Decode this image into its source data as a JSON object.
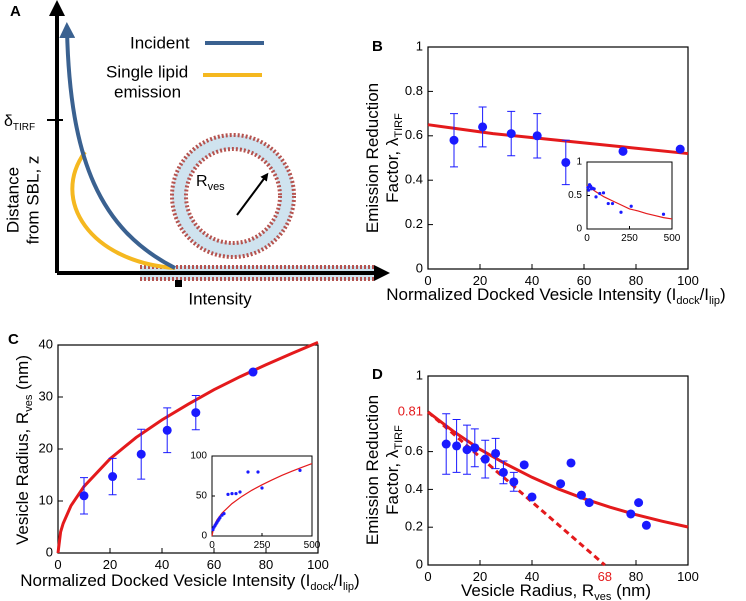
{
  "diagram": {
    "panel": "A",
    "incident": "Incident",
    "emission": [
      "Single lipid",
      "emission"
    ],
    "delta": {
      "text": "δ",
      "sub": "TIRF"
    },
    "ylabel": [
      "Distance",
      "from SBL, z"
    ],
    "xlabel": "Intensity",
    "radius": {
      "text": "R",
      "sub": "ves"
    }
  },
  "chart_data": [
    {
      "panel": "B",
      "type": "scatter",
      "xlim": [
        0,
        100
      ],
      "ylim": [
        0,
        1
      ],
      "xticks": [
        0,
        20,
        40,
        60,
        80,
        100
      ],
      "yticks": [
        0,
        0.2,
        0.4,
        0.6,
        0.8,
        1
      ],
      "xlabel": [
        {
          "text": "Normalized Docked Vesicle Intensity (I"
        },
        {
          "sub": "dock"
        },
        {
          "text": "/I"
        },
        {
          "sub": "lip"
        },
        {
          "text": ")"
        }
      ],
      "ylabel": [
        [
          {
            "text": "Emission Reduction"
          }
        ],
        [
          {
            "text": "Factor, λ"
          },
          {
            "sub": "TIRF"
          }
        ]
      ],
      "series": [
        {
          "type": "line",
          "color": "#e41a1c",
          "x": [
            0,
            25,
            50,
            75,
            100
          ],
          "values": [
            0.65,
            0.61,
            0.58,
            0.55,
            0.52
          ]
        },
        {
          "type": "scatter",
          "color": "#1a1aff",
          "x": [
            10,
            21,
            32,
            42,
            53,
            75,
            97
          ],
          "values": [
            0.58,
            0.64,
            0.61,
            0.6,
            0.48,
            0.53,
            0.54
          ],
          "errors": [
            0.12,
            0.09,
            0.1,
            0.1,
            0.1,
            null,
            null
          ]
        }
      ],
      "inset": {
        "xlim": [
          0,
          500
        ],
        "ylim": [
          0,
          1
        ],
        "xticks": [
          0,
          250,
          500
        ],
        "yticks": [
          0,
          0.5,
          1
        ],
        "series": [
          {
            "type": "line",
            "color": "#e41a1c",
            "x": [
              0,
              50,
              100,
              150,
              200,
              250,
              300,
              350,
              400,
              450,
              500
            ],
            "values": [
              0.65,
              0.56,
              0.48,
              0.42,
              0.36,
              0.3,
              0.27,
              0.23,
              0.2,
              0.17,
              0.15
            ]
          },
          {
            "type": "scatter",
            "color": "#1a1aff",
            "x": [
              5,
              10,
              15,
              21,
              26,
              32,
              42,
              53,
              75,
              97,
              125,
              150,
              200,
              260,
              450
            ],
            "values": [
              0.62,
              0.58,
              0.66,
              0.64,
              0.6,
              0.61,
              0.6,
              0.48,
              0.53,
              0.54,
              0.38,
              0.38,
              0.25,
              0.34,
              0.22
            ]
          }
        ]
      }
    },
    {
      "panel": "C",
      "type": "scatter",
      "xlim": [
        0,
        100
      ],
      "ylim": [
        0,
        40
      ],
      "xticks": [
        0,
        20,
        40,
        60,
        80,
        100
      ],
      "yticks": [
        0,
        10,
        20,
        30,
        40
      ],
      "xlabel": [
        {
          "text": "Normalized Docked Vesicle Intensity (I"
        },
        {
          "sub": "dock"
        },
        {
          "text": "/I"
        },
        {
          "sub": "lip"
        },
        {
          "text": ")"
        }
      ],
      "ylabel": [
        [
          {
            "text": "Vesicle Radius, R"
          },
          {
            "sub": "ves"
          },
          {
            "text": " (nm)"
          }
        ]
      ],
      "series": [
        {
          "type": "line",
          "color": "#e41a1c",
          "x": [
            0,
            1,
            2,
            5,
            10,
            20,
            30,
            40,
            50,
            60,
            70,
            80,
            90,
            100
          ],
          "values": [
            0,
            4.05,
            5.7,
            9.1,
            12.8,
            18.1,
            22.2,
            25.6,
            28.6,
            31.4,
            33.9,
            36.2,
            38.4,
            40.5
          ]
        },
        {
          "type": "scatter",
          "color": "#1a1aff",
          "x": [
            10,
            21,
            32,
            42,
            53,
            75
          ],
          "values": [
            11,
            14.7,
            19,
            23.6,
            27,
            34.8
          ],
          "errors": [
            3.5,
            3.5,
            4.8,
            4.3,
            3.3,
            null
          ]
        }
      ],
      "inset": {
        "xlim": [
          0,
          500
        ],
        "ylim": [
          0,
          100
        ],
        "xticks": [
          0,
          250,
          500
        ],
        "yticks": [
          0,
          50,
          100
        ],
        "series": [
          {
            "type": "line",
            "color": "#e41a1c",
            "x": [
              0,
              10,
              25,
              50,
              100,
              150,
              200,
              250,
              300,
              350,
              400,
              450,
              500
            ],
            "values": [
              0,
              12.8,
              20.3,
              28.6,
              40.5,
              49.6,
              57.3,
              64,
              70.1,
              75.8,
              81,
              85.9,
              90.6
            ]
          },
          {
            "type": "scatter",
            "color": "#1a1aff",
            "x": [
              5,
              10,
              15,
              20,
              25,
              30,
              35,
              40,
              50,
              60,
              80,
              100,
              120,
              140,
              180,
              230,
              250,
              440
            ],
            "values": [
              8,
              11,
              13,
              15,
              17,
              19,
              21,
              23,
              26,
              28,
              52,
              53,
              53,
              55,
              80,
              80,
              60,
              82
            ]
          }
        ]
      }
    },
    {
      "panel": "D",
      "type": "scatter",
      "xlim": [
        0,
        100
      ],
      "ylim": [
        0,
        1
      ],
      "xticks": [
        0,
        20,
        40,
        80,
        100
      ],
      "yticks": [
        0,
        0.2,
        0.4,
        0.6,
        1
      ],
      "xlabel": [
        {
          "text": "Vesicle Radius, R"
        },
        {
          "sub": "ves"
        },
        {
          "text": " (nm)"
        }
      ],
      "ylabel": [
        [
          {
            "text": "Emission Reduction"
          }
        ],
        [
          {
            "text": "Factor, λ"
          },
          {
            "sub": "TIRF"
          }
        ]
      ],
      "annotations": [
        {
          "axis": "y",
          "value": 0.81,
          "color": "#e41a1c"
        },
        {
          "axis": "x",
          "value": 68,
          "color": "#e41a1c"
        }
      ],
      "series": [
        {
          "type": "line",
          "color": "#e41a1c",
          "x": [
            0,
            10,
            20,
            30,
            40,
            50,
            60,
            70,
            80,
            90,
            100
          ],
          "values": [
            0.81,
            0.705,
            0.612,
            0.534,
            0.464,
            0.403,
            0.351,
            0.306,
            0.266,
            0.232,
            0.201
          ]
        },
        {
          "type": "line",
          "color": "#e41a1c",
          "dash": true,
          "x": [
            0,
            68
          ],
          "values": [
            0.81,
            0
          ]
        },
        {
          "type": "scatter",
          "color": "#1a1aff",
          "x": [
            7,
            11,
            15,
            18,
            22,
            26,
            29,
            33
          ],
          "values": [
            0.64,
            0.63,
            0.61,
            0.62,
            0.56,
            0.59,
            0.49,
            0.44
          ],
          "errors": [
            0.16,
            0.14,
            0.13,
            0.1,
            0.1,
            0.08,
            0.06,
            0.05
          ]
        },
        {
          "type": "scatter",
          "color": "#1a1aff",
          "x": [
            37,
            40,
            51,
            55,
            59,
            62,
            78,
            81,
            84
          ],
          "values": [
            0.53,
            0.36,
            0.43,
            0.54,
            0.37,
            0.33,
            0.27,
            0.33,
            0.21
          ]
        }
      ]
    }
  ]
}
